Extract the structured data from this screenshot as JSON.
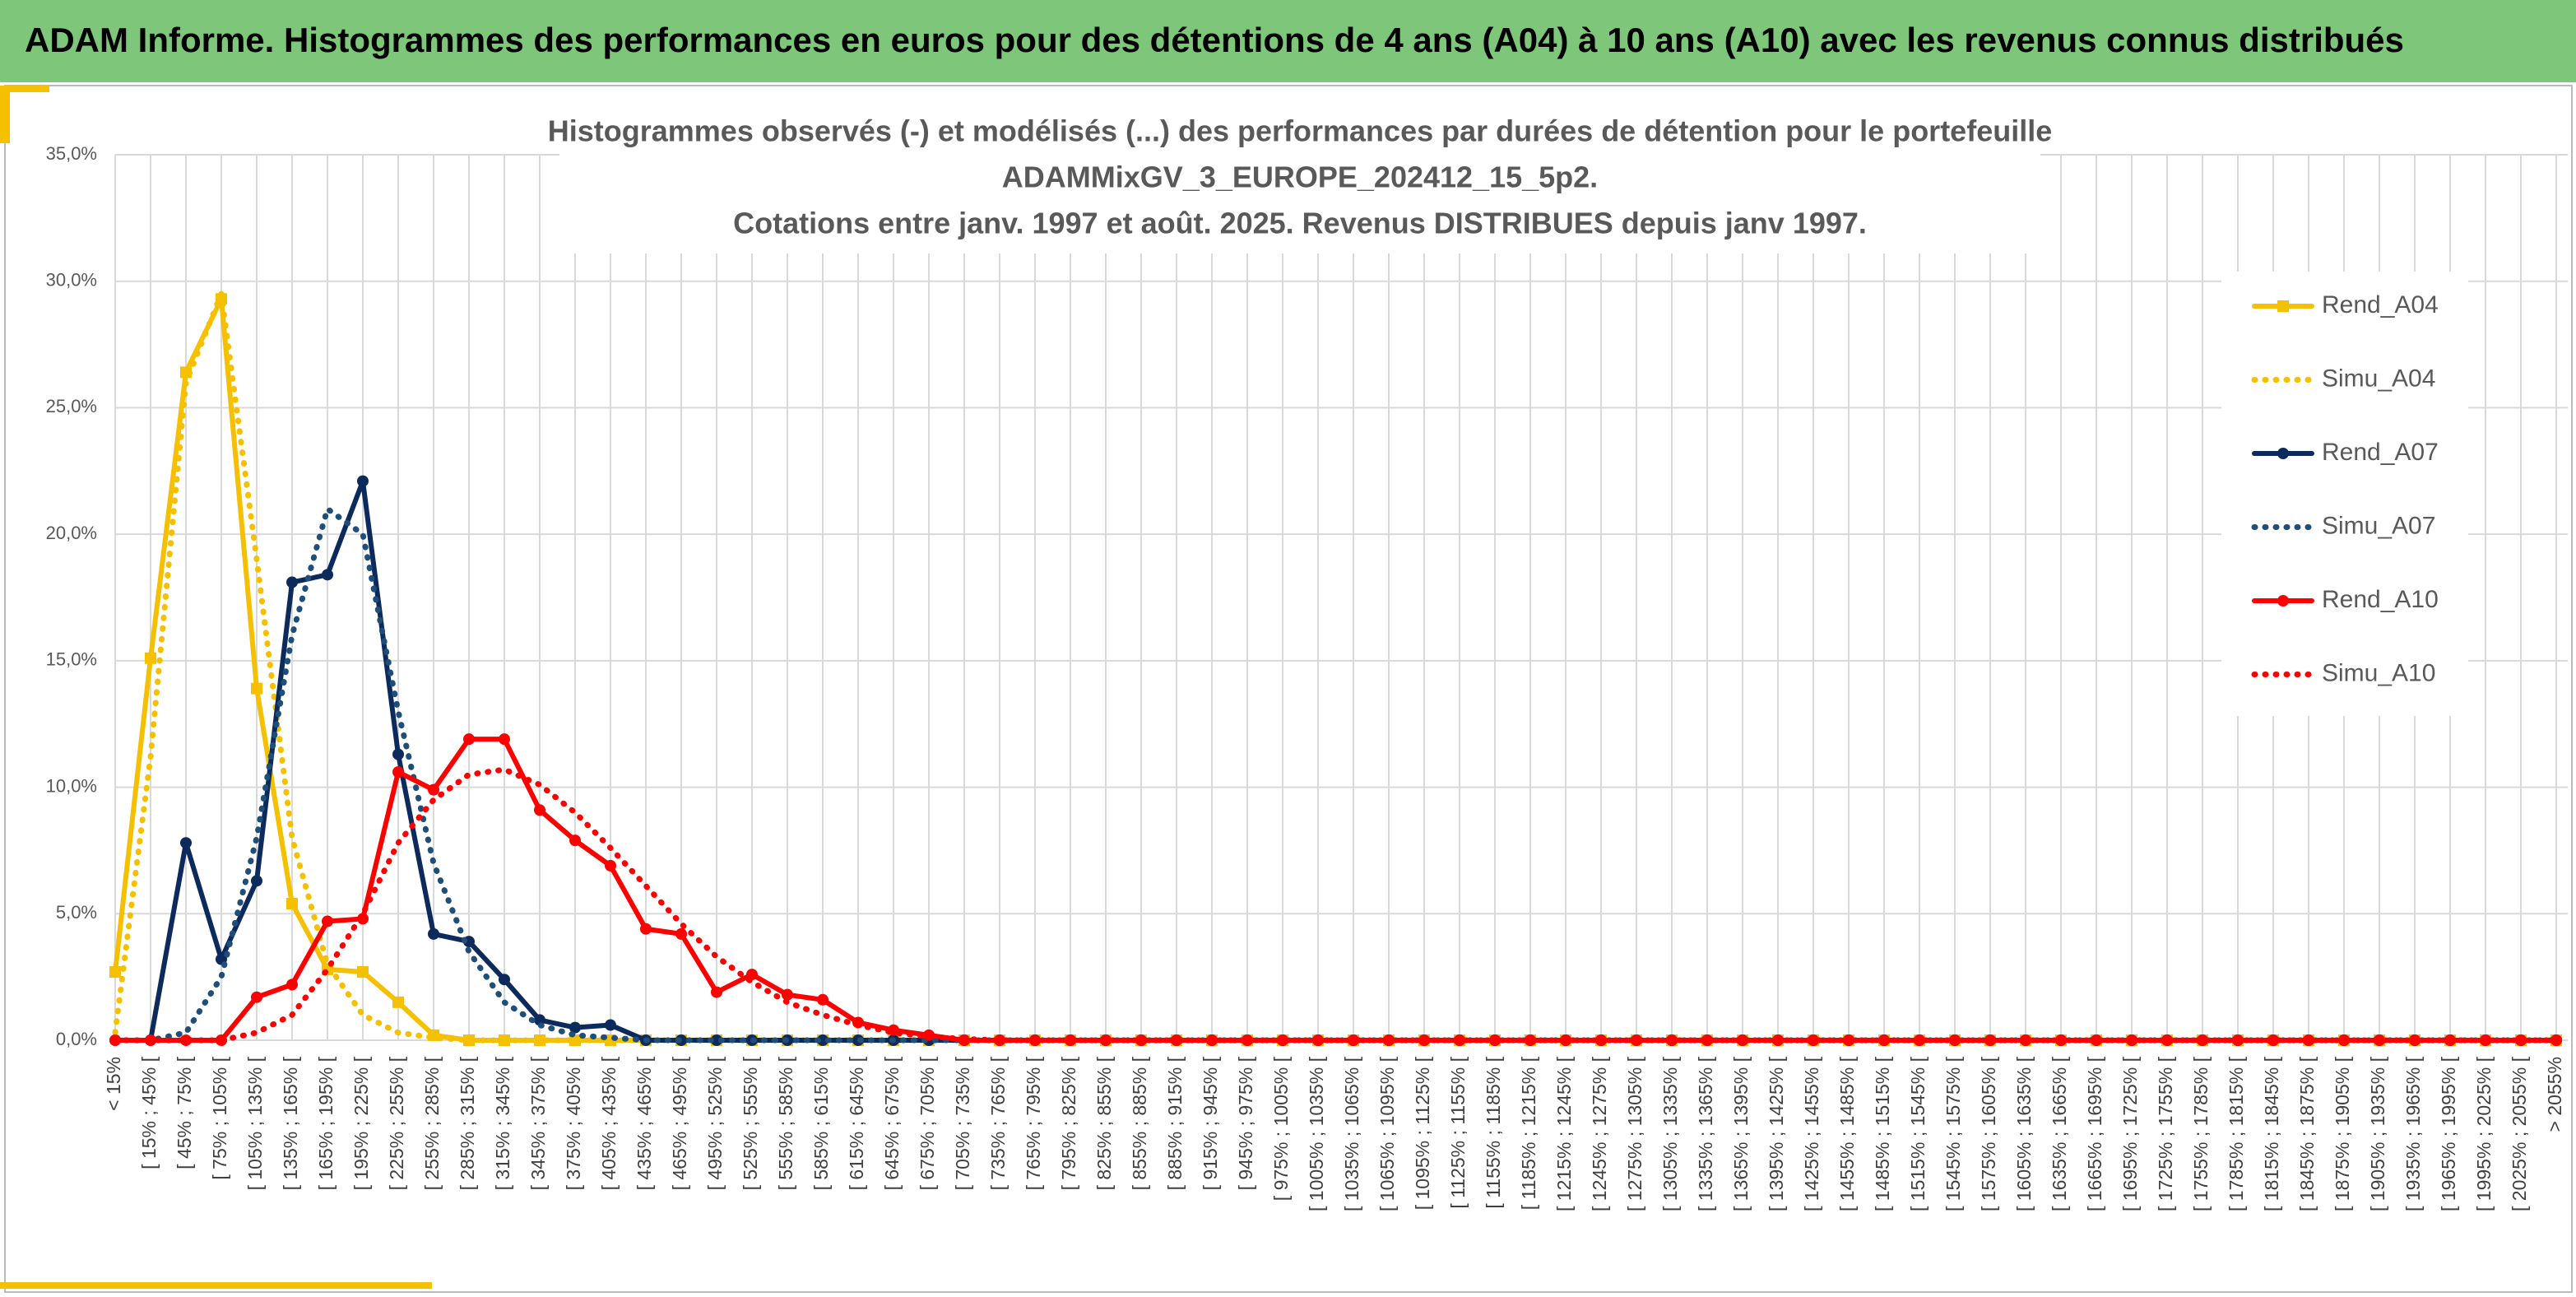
{
  "header": {
    "title": "ADAM Informe. Histogrammes des performances en euros pour des détentions de 4 ans (A04) à 10 ans (A10) avec les revenus connus distribués"
  },
  "chart_data": {
    "type": "line",
    "title": [
      "Histogrammes observés (-) et modélisés (...) des performances par durées de détention pour le portefeuille",
      "ADAMMixGV_3_EUROPE_202412_15_5p2.",
      "Cotations entre janv. 1997 et août. 2025. Revenus DISTRIBUES depuis janv 1997."
    ],
    "categories": [
      "< 15%",
      "[ 15% ; 45% [",
      "[ 45% ; 75% [",
      "[ 75% ; 105% [",
      "[ 105% ; 135% [",
      "[ 135% ; 165% [",
      "[ 165% ; 195% [",
      "[ 195% ; 225% [",
      "[ 225% ; 255% [",
      "[ 255% ; 285% [",
      "[ 285% ; 315% [",
      "[ 315% ; 345% [",
      "[ 345% ; 375% [",
      "[ 375% ; 405% [",
      "[ 405% ; 435% [",
      "[ 435% ; 465% [",
      "[ 465% ; 495% [",
      "[ 495% ; 525% [",
      "[ 525% ; 555% [",
      "[ 555% ; 585% [",
      "[ 585% ; 615% [",
      "[ 615% ; 645% [",
      "[ 645% ; 675% [",
      "[ 675% ; 705% [",
      "[ 705% ; 735% [",
      "[ 735% ; 765% [",
      "[ 765% ; 795% [",
      "[ 795% ; 825% [",
      "[ 825% ; 855% [",
      "[ 855% ; 885% [",
      "[ 885% ; 915% [",
      "[ 915% ; 945% [",
      "[ 945% ; 975% [",
      "[ 975% ; 1005% [",
      "[ 1005% ; 1035% [",
      "[ 1035% ; 1065% [",
      "[ 1065% ; 1095% [",
      "[ 1095% ; 1125% [",
      "[ 1125% ; 1155% [",
      "[ 1155% ; 1185% [",
      "[ 1185% ; 1215% [",
      "[ 1215% ; 1245% [",
      "[ 1245% ; 1275% [",
      "[ 1275% ; 1305% [",
      "[ 1305% ; 1335% [",
      "[ 1335% ; 1365% [",
      "[ 1365% ; 1395% [",
      "[ 1395% ; 1425% [",
      "[ 1425% ; 1455% [",
      "[ 1455% ; 1485% [",
      "[ 1485% ; 1515% [",
      "[ 1515% ; 1545% [",
      "[ 1545% ; 1575% [",
      "[ 1575% ; 1605% [",
      "[ 1605% ; 1635% [",
      "[ 1635% ; 1665% [",
      "[ 1665% ; 1695% [",
      "[ 1695% ; 1725% [",
      "[ 1725% ; 1755% [",
      "[ 1755% ; 1785% [",
      "[ 1785% ; 1815% [",
      "[ 1815% ; 1845% [",
      "[ 1845% ; 1875% [",
      "[ 1875% ; 1905% [",
      "[ 1905% ; 1935% [",
      "[ 1935% ; 1965% [",
      "[ 1965% ; 1995% [",
      "[ 1995% ; 2025% [",
      "[ 2025% ; 2055% [",
      "> 2055%"
    ],
    "series": [
      {
        "name": "Rend_A04",
        "color": "#f5c000",
        "dashed": false,
        "marker": "square",
        "values": [
          2.7,
          15.1,
          26.4,
          29.3,
          13.9,
          5.4,
          2.8,
          2.7,
          1.5,
          0.2,
          0,
          0,
          0,
          0,
          0,
          0,
          0,
          0,
          0,
          0,
          0,
          0,
          0,
          0,
          0,
          0,
          0,
          0,
          0,
          0,
          0,
          0,
          0,
          0,
          0,
          0,
          0,
          0,
          0,
          0,
          0,
          0,
          0,
          0,
          0,
          0,
          0,
          0,
          0,
          0,
          0,
          0,
          0,
          0,
          0,
          0,
          0,
          0,
          0,
          0,
          0,
          0,
          0,
          0,
          0,
          0,
          0,
          0,
          0,
          0
        ]
      },
      {
        "name": "Simu_A04",
        "color": "#f5c000",
        "dashed": true,
        "values": [
          0.3,
          11.2,
          26,
          29.5,
          19,
          8,
          3,
          1,
          0.3,
          0.1,
          0,
          0,
          0,
          0,
          0,
          0,
          0,
          0,
          0,
          0,
          0,
          0,
          0,
          0,
          0,
          0,
          0,
          0,
          0,
          0,
          0,
          0,
          0,
          0,
          0,
          0,
          0,
          0,
          0,
          0,
          0,
          0,
          0,
          0,
          0,
          0,
          0,
          0,
          0,
          0,
          0,
          0,
          0,
          0,
          0,
          0,
          0,
          0,
          0,
          0,
          0,
          0,
          0,
          0,
          0,
          0,
          0,
          0,
          0,
          0
        ]
      },
      {
        "name": "Rend_A07",
        "color": "#0d2a5c",
        "dashed": false,
        "marker": "circle",
        "values": [
          0,
          0,
          7.8,
          3.2,
          6.3,
          18.1,
          18.4,
          22.1,
          11.3,
          4.2,
          3.9,
          2.4,
          0.8,
          0.5,
          0.6,
          0,
          0,
          0,
          0,
          0,
          0,
          0,
          0,
          0,
          0,
          0,
          0,
          0,
          0,
          0,
          0,
          0,
          0,
          0,
          0,
          0,
          0,
          0,
          0,
          0,
          0,
          0,
          0,
          0,
          0,
          0,
          0,
          0,
          0,
          0,
          0,
          0,
          0,
          0,
          0,
          0,
          0,
          0,
          0,
          0,
          0,
          0,
          0,
          0,
          0,
          0,
          0,
          0,
          0,
          0
        ]
      },
      {
        "name": "Simu_A07",
        "color": "#1f4e79",
        "dashed": true,
        "values": [
          0,
          0,
          0.3,
          2.5,
          8,
          16,
          21,
          20,
          13,
          7,
          3.5,
          1.5,
          0.6,
          0.2,
          0.1,
          0,
          0,
          0,
          0,
          0,
          0,
          0,
          0,
          0,
          0,
          0,
          0,
          0,
          0,
          0,
          0,
          0,
          0,
          0,
          0,
          0,
          0,
          0,
          0,
          0,
          0,
          0,
          0,
          0,
          0,
          0,
          0,
          0,
          0,
          0,
          0,
          0,
          0,
          0,
          0,
          0,
          0,
          0,
          0,
          0,
          0,
          0,
          0,
          0,
          0,
          0,
          0,
          0,
          0,
          0
        ]
      },
      {
        "name": "Rend_A10",
        "color": "#ff0000",
        "dashed": false,
        "marker": "circle",
        "values": [
          0,
          0,
          0,
          0,
          1.7,
          2.2,
          4.7,
          4.8,
          10.6,
          9.9,
          11.9,
          11.9,
          9.1,
          7.9,
          6.9,
          4.4,
          4.2,
          1.9,
          2.6,
          1.8,
          1.6,
          0.7,
          0.4,
          0.2,
          0,
          0,
          0,
          0,
          0,
          0,
          0,
          0,
          0,
          0,
          0,
          0,
          0,
          0,
          0,
          0,
          0,
          0,
          0,
          0,
          0,
          0,
          0,
          0,
          0,
          0,
          0,
          0,
          0,
          0,
          0,
          0,
          0,
          0,
          0,
          0,
          0,
          0,
          0,
          0,
          0,
          0,
          0,
          0,
          0,
          0
        ]
      },
      {
        "name": "Simu_A10",
        "color": "#ff0000",
        "dashed": true,
        "values": [
          0,
          0,
          0,
          0,
          0.3,
          1,
          2.8,
          5,
          7.8,
          9.5,
          10.5,
          10.7,
          10.1,
          9,
          7.6,
          6.1,
          4.6,
          3.3,
          2.3,
          1.5,
          1,
          0.6,
          0.3,
          0.15,
          0.05,
          0,
          0,
          0,
          0,
          0,
          0,
          0,
          0,
          0,
          0,
          0,
          0,
          0,
          0,
          0,
          0,
          0,
          0,
          0,
          0,
          0,
          0,
          0,
          0,
          0,
          0,
          0,
          0,
          0,
          0,
          0,
          0,
          0,
          0,
          0,
          0,
          0,
          0,
          0,
          0,
          0,
          0,
          0,
          0,
          0
        ]
      }
    ],
    "ylim": [
      0,
      35
    ],
    "yticks": [
      {
        "value": 0,
        "label": "0,0%"
      },
      {
        "value": 5,
        "label": "5,0%"
      },
      {
        "value": 10,
        "label": "10,0%"
      },
      {
        "value": 15,
        "label": "15,0%"
      },
      {
        "value": 20,
        "label": "20,0%"
      },
      {
        "value": 25,
        "label": "25,0%"
      },
      {
        "value": 30,
        "label": "30,0%"
      },
      {
        "value": 35,
        "label": "35,0%"
      }
    ],
    "grid": true,
    "legend": "right"
  }
}
